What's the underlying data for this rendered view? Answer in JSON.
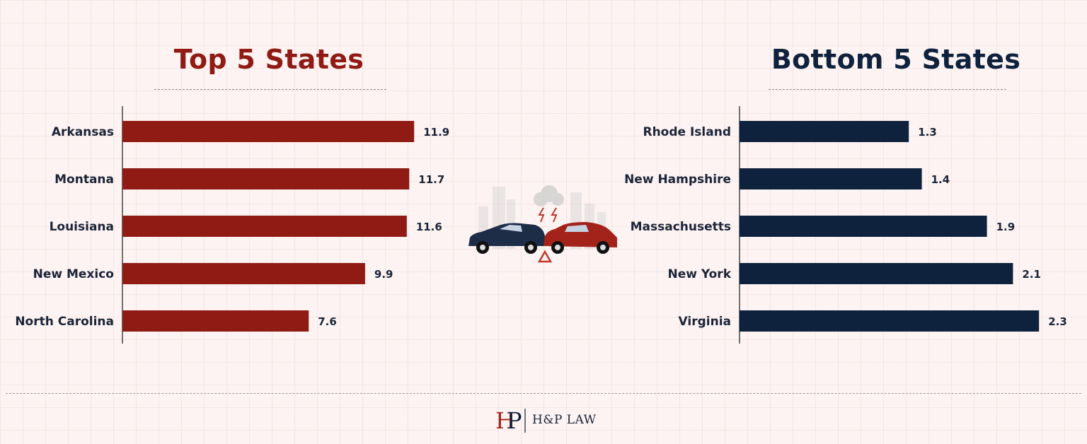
{
  "colors": {
    "top": "#8f1b14",
    "bottom": "#0e223e",
    "text": "#1b2438"
  },
  "left": {
    "title": "Top 5 States",
    "chart_data": {
      "type": "bar",
      "orientation": "horizontal",
      "title": "Top 5 States",
      "categories": [
        "Arkansas",
        "Montana",
        "Louisiana",
        "New Mexico",
        "North Carolina"
      ],
      "values": [
        11.9,
        11.7,
        11.6,
        9.9,
        7.6
      ],
      "xlim": [
        0,
        12.5
      ],
      "grid": false,
      "color": "#8f1b14"
    }
  },
  "right": {
    "title": "Bottom 5 States",
    "chart_data": {
      "type": "bar",
      "orientation": "horizontal",
      "title": "Bottom 5 States",
      "categories": [
        "Rhode Island",
        "New Hampshire",
        "Massachusetts",
        "New York",
        "Virginia"
      ],
      "values": [
        1.3,
        1.4,
        1.9,
        2.1,
        2.3
      ],
      "xlim": [
        0,
        2.5
      ],
      "grid": false,
      "color": "#0e223e"
    }
  },
  "center_illustration": "car-crash-icon",
  "footer": {
    "brand": "H&P LAW",
    "logo": "hp-monogram-logo"
  }
}
